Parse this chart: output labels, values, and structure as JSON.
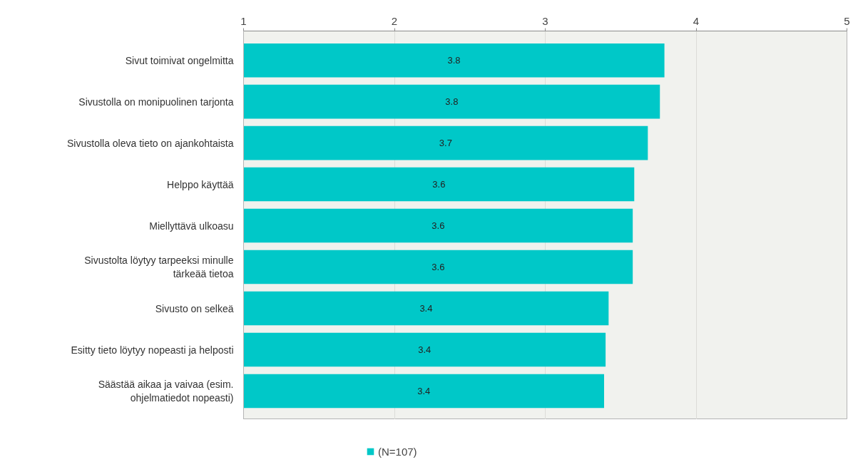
{
  "chart_data": {
    "type": "bar",
    "orientation": "horizontal",
    "categories": [
      "Sivut toimivat ongelmitta",
      "Sivustolla on monipuolinen tarjonta",
      "Sivustolla oleva tieto on ajankohtaista",
      "Helppo käyttää",
      "Miellyttävä ulkoasu",
      "Sivustolta löytyy tarpeeksi minulle tärkeää tietoa",
      "Sivusto on selkeä",
      "Esitty tieto löytyy nopeasti ja helposti",
      "Säästää aikaa ja vaivaa (esim. ohjelmatiedot nopeasti)"
    ],
    "series": [
      {
        "name": "(N=107)",
        "color": "#00c8c8",
        "values": [
          3.79,
          3.76,
          3.68,
          3.59,
          3.58,
          3.58,
          3.42,
          3.4,
          3.39
        ],
        "value_labels": [
          "3.8",
          "3.8",
          "3.7",
          "3.6",
          "3.6",
          "3.6",
          "3.4",
          "3.4",
          "3.4"
        ]
      }
    ],
    "xlim": [
      1,
      5
    ],
    "xticks": [
      1,
      2,
      3,
      4,
      5
    ],
    "grid": "x",
    "legend": "bottom"
  }
}
